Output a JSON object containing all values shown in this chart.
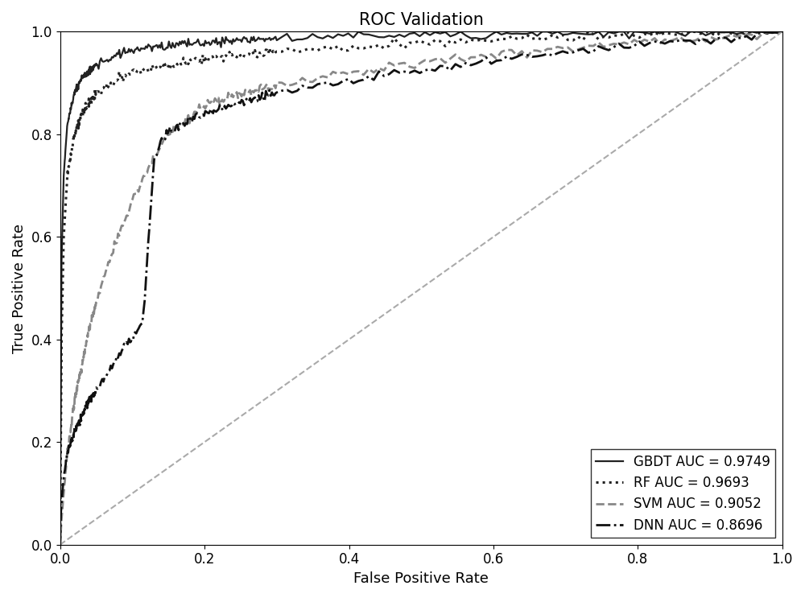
{
  "title": "ROC Validation",
  "xlabel": "False Positive Rate",
  "ylabel": "True Positive Rate",
  "xlim": [
    0.0,
    1.0
  ],
  "ylim": [
    0.0,
    1.0
  ],
  "curves": [
    {
      "label": "GBDT AUC = 0.9749",
      "color": "#222222",
      "linestyle": "solid",
      "linewidth": 1.6,
      "fpr_key": [
        0,
        0.002,
        0.005,
        0.01,
        0.02,
        0.03,
        0.05,
        0.08,
        0.1,
        0.15,
        0.2,
        0.3,
        0.4,
        0.5,
        0.6,
        0.7,
        0.8,
        0.9,
        1.0
      ],
      "tpr_key": [
        0,
        0.55,
        0.72,
        0.82,
        0.88,
        0.91,
        0.935,
        0.955,
        0.963,
        0.973,
        0.979,
        0.987,
        0.991,
        0.994,
        0.996,
        0.997,
        0.998,
        0.999,
        1.0
      ]
    },
    {
      "label": "RF AUC = 0.9693",
      "color": "#222222",
      "linestyle": "dotted",
      "linewidth": 2.2,
      "fpr_key": [
        0,
        0.002,
        0.005,
        0.01,
        0.02,
        0.03,
        0.05,
        0.08,
        0.1,
        0.15,
        0.2,
        0.3,
        0.4,
        0.5,
        0.6,
        0.7,
        0.8,
        0.9,
        1.0
      ],
      "tpr_key": [
        0,
        0.4,
        0.6,
        0.72,
        0.8,
        0.84,
        0.88,
        0.905,
        0.92,
        0.935,
        0.948,
        0.962,
        0.97,
        0.977,
        0.983,
        0.988,
        0.993,
        0.997,
        1.0
      ]
    },
    {
      "label": "SVM AUC = 0.9052",
      "color": "#888888",
      "linestyle": "dashed",
      "linewidth": 2.0,
      "fpr_key": [
        0,
        0.002,
        0.005,
        0.01,
        0.02,
        0.04,
        0.06,
        0.08,
        0.1,
        0.12,
        0.15,
        0.2,
        0.25,
        0.3,
        0.4,
        0.5,
        0.6,
        0.7,
        0.8,
        0.9,
        1.0
      ],
      "tpr_key": [
        0,
        0.05,
        0.1,
        0.18,
        0.28,
        0.42,
        0.52,
        0.6,
        0.67,
        0.73,
        0.8,
        0.855,
        0.878,
        0.895,
        0.921,
        0.94,
        0.956,
        0.968,
        0.979,
        0.989,
        1.0
      ]
    },
    {
      "label": "DNN AUC = 0.8696",
      "color": "#111111",
      "linestyle": "dashdot",
      "linewidth": 2.0,
      "fpr_key": [
        0,
        0.001,
        0.003,
        0.005,
        0.01,
        0.02,
        0.04,
        0.06,
        0.08,
        0.1,
        0.115,
        0.13,
        0.14,
        0.15,
        0.17,
        0.2,
        0.25,
        0.3,
        0.4,
        0.5,
        0.6,
        0.7,
        0.8,
        0.9,
        1.0
      ],
      "tpr_key": [
        0,
        0.06,
        0.1,
        0.13,
        0.18,
        0.22,
        0.28,
        0.32,
        0.37,
        0.4,
        0.44,
        0.75,
        0.785,
        0.805,
        0.82,
        0.84,
        0.862,
        0.878,
        0.903,
        0.924,
        0.944,
        0.96,
        0.974,
        0.985,
        1.0
      ]
    }
  ],
  "diagonal_color": "#aaaaaa",
  "diagonal_linestyle": "dashed",
  "diagonal_linewidth": 1.5,
  "legend_loc": "lower right",
  "title_fontsize": 15,
  "label_fontsize": 13,
  "tick_fontsize": 12,
  "legend_fontsize": 12,
  "figsize": [
    10.0,
    7.43
  ],
  "dpi": 100
}
